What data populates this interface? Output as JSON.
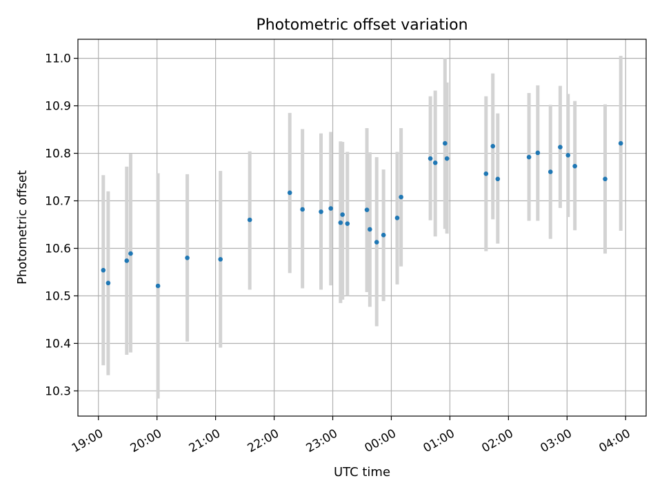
{
  "chart_data": {
    "type": "scatter",
    "title": "Photometric offset variation",
    "xlabel": "UTC time",
    "ylabel": "Photometric offset",
    "x_tick_labels": [
      "19:00",
      "20:00",
      "21:00",
      "22:00",
      "23:00",
      "00:00",
      "01:00",
      "02:00",
      "03:00",
      "04:00"
    ],
    "y_tick_labels": [
      "10.3",
      "10.4",
      "10.5",
      "10.6",
      "10.7",
      "10.8",
      "10.9",
      "11.0"
    ],
    "x_range_hours_from_1900": [
      -0.35,
      9.35
    ],
    "ylim": [
      10.247,
      11.04
    ],
    "grid": true,
    "colors": {
      "point": "#1f77b4",
      "errorbar": "#d3d3d3"
    },
    "points": [
      {
        "x": "19:05",
        "y": 10.554,
        "yerr_low": 10.354,
        "yerr_high": 10.754
      },
      {
        "x": "19:10",
        "y": 10.527,
        "yerr_low": 10.333,
        "yerr_high": 10.72
      },
      {
        "x": "19:29",
        "y": 10.574,
        "yerr_low": 10.376,
        "yerr_high": 10.772
      },
      {
        "x": "19:33",
        "y": 10.589,
        "yerr_low": 10.381,
        "yerr_high": 10.799
      },
      {
        "x": "20:01",
        "y": 10.521,
        "yerr_low": 10.284,
        "yerr_high": 10.758
      },
      {
        "x": "20:31",
        "y": 10.58,
        "yerr_low": 10.404,
        "yerr_high": 10.756
      },
      {
        "x": "21:05",
        "y": 10.577,
        "yerr_low": 10.391,
        "yerr_high": 10.763
      },
      {
        "x": "21:35",
        "y": 10.66,
        "yerr_low": 10.513,
        "yerr_high": 10.804
      },
      {
        "x": "22:16",
        "y": 10.717,
        "yerr_low": 10.548,
        "yerr_high": 10.885
      },
      {
        "x": "22:29",
        "y": 10.682,
        "yerr_low": 10.516,
        "yerr_high": 10.851
      },
      {
        "x": "22:48",
        "y": 10.677,
        "yerr_low": 10.513,
        "yerr_high": 10.842
      },
      {
        "x": "22:58",
        "y": 10.684,
        "yerr_low": 10.522,
        "yerr_high": 10.845
      },
      {
        "x": "23:08",
        "y": 10.654,
        "yerr_low": 10.485,
        "yerr_high": 10.825
      },
      {
        "x": "23:10",
        "y": 10.671,
        "yerr_low": 10.492,
        "yerr_high": 10.824
      },
      {
        "x": "23:15",
        "y": 10.652,
        "yerr_low": 10.5,
        "yerr_high": 10.803
      },
      {
        "x": "23:35",
        "y": 10.681,
        "yerr_low": 10.508,
        "yerr_high": 10.853
      },
      {
        "x": "23:38",
        "y": 10.64,
        "yerr_low": 10.477,
        "yerr_high": 10.802
      },
      {
        "x": "23:45",
        "y": 10.613,
        "yerr_low": 10.436,
        "yerr_high": 10.792
      },
      {
        "x": "23:52",
        "y": 10.628,
        "yerr_low": 10.489,
        "yerr_high": 10.766
      },
      {
        "x": "00:06",
        "y": 10.664,
        "yerr_low": 10.524,
        "yerr_high": 10.803
      },
      {
        "x": "00:10",
        "y": 10.708,
        "yerr_low": 10.562,
        "yerr_high": 10.853
      },
      {
        "x": "00:40",
        "y": 10.789,
        "yerr_low": 10.659,
        "yerr_high": 10.92
      },
      {
        "x": "00:45",
        "y": 10.78,
        "yerr_low": 10.625,
        "yerr_high": 10.932
      },
      {
        "x": "00:55",
        "y": 10.821,
        "yerr_low": 10.641,
        "yerr_high": 11.001
      },
      {
        "x": "00:57",
        "y": 10.789,
        "yerr_low": 10.631,
        "yerr_high": 10.949
      },
      {
        "x": "01:37",
        "y": 10.757,
        "yerr_low": 10.594,
        "yerr_high": 10.92
      },
      {
        "x": "01:44",
        "y": 10.815,
        "yerr_low": 10.661,
        "yerr_high": 10.968
      },
      {
        "x": "01:49",
        "y": 10.746,
        "yerr_low": 10.61,
        "yerr_high": 10.884
      },
      {
        "x": "02:21",
        "y": 10.792,
        "yerr_low": 10.658,
        "yerr_high": 10.927
      },
      {
        "x": "02:30",
        "y": 10.801,
        "yerr_low": 10.658,
        "yerr_high": 10.943
      },
      {
        "x": "02:43",
        "y": 10.761,
        "yerr_low": 10.62,
        "yerr_high": 10.902
      },
      {
        "x": "02:53",
        "y": 10.813,
        "yerr_low": 10.685,
        "yerr_high": 10.942
      },
      {
        "x": "03:01",
        "y": 10.796,
        "yerr_low": 10.666,
        "yerr_high": 10.925
      },
      {
        "x": "03:08",
        "y": 10.773,
        "yerr_low": 10.638,
        "yerr_high": 10.91
      },
      {
        "x": "03:39",
        "y": 10.746,
        "yerr_low": 10.589,
        "yerr_high": 10.903
      },
      {
        "x": "03:55",
        "y": 10.821,
        "yerr_low": 10.637,
        "yerr_high": 11.005
      }
    ]
  }
}
